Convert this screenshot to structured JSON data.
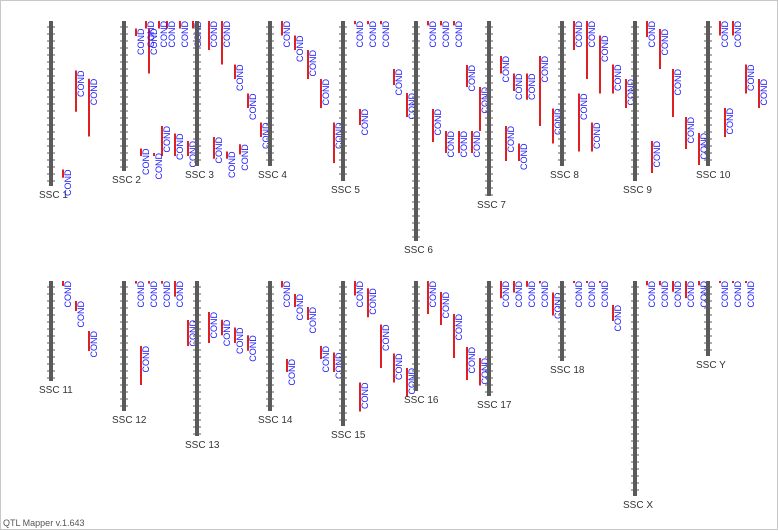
{
  "app": {
    "version_label": "QTL Mapper v.1.643"
  },
  "colors": {
    "chromosome": "#5a5a5a",
    "qtl_bar": "#e02020",
    "qtl_label": "#1a1aff",
    "chr_label": "#333333"
  },
  "trait_label": "COND",
  "chromosomes": [
    {
      "name": "SSC 1",
      "qtls": [
        [
          0.9,
          0.95
        ],
        [
          0.3,
          0.55
        ],
        [
          0.35,
          0.7
        ]
      ]
    },
    {
      "name": "SSC 2",
      "qtls": [
        [
          0.05,
          0.1
        ],
        [
          0.05,
          0.35
        ],
        [
          0.7,
          0.9
        ],
        [
          0.75,
          0.9
        ],
        [
          0.8,
          0.9
        ],
        [
          0.85,
          0.9
        ],
        [
          0.88,
          0.9
        ],
        [
          0.0,
          0.05
        ],
        [
          0.0,
          0.05
        ],
        [
          0.0,
          0.05
        ],
        [
          0.0,
          0.05
        ],
        [
          0.0,
          0.05
        ]
      ]
    },
    {
      "name": "SSC 3",
      "qtls": [
        [
          0.0,
          0.2
        ],
        [
          0.0,
          0.3
        ],
        [
          0.3,
          0.4
        ],
        [
          0.5,
          0.6
        ],
        [
          0.7,
          0.8
        ],
        [
          0.8,
          0.95
        ],
        [
          0.9,
          0.95
        ],
        [
          0.85,
          0.92
        ]
      ]
    },
    {
      "name": "SSC 4",
      "qtls": [
        [
          0.0,
          0.1
        ],
        [
          0.1,
          0.2
        ],
        [
          0.2,
          0.4
        ],
        [
          0.4,
          0.6
        ],
        [
          0.7,
          0.98
        ]
      ]
    },
    {
      "name": "SSC 5",
      "qtls": [
        [
          0.0,
          0.02
        ],
        [
          0.0,
          0.02
        ],
        [
          0.0,
          0.02
        ],
        [
          0.3,
          0.4
        ],
        [
          0.45,
          0.6
        ],
        [
          0.55,
          0.65
        ]
      ]
    },
    {
      "name": "SSC 6",
      "qtls": [
        [
          0.0,
          0.02
        ],
        [
          0.0,
          0.02
        ],
        [
          0.0,
          0.02
        ],
        [
          0.2,
          0.3
        ],
        [
          0.3,
          0.5
        ],
        [
          0.4,
          0.55
        ],
        [
          0.5,
          0.6
        ],
        [
          0.5,
          0.6
        ],
        [
          0.5,
          0.6
        ]
      ]
    },
    {
      "name": "SSC 7",
      "qtls": [
        [
          0.2,
          0.3
        ],
        [
          0.3,
          0.4
        ],
        [
          0.3,
          0.45
        ],
        [
          0.2,
          0.6
        ],
        [
          0.5,
          0.7
        ],
        [
          0.6,
          0.8
        ],
        [
          0.7,
          0.8
        ]
      ]
    },
    {
      "name": "SSC 8",
      "qtls": [
        [
          0.0,
          0.2
        ],
        [
          0.0,
          0.4
        ],
        [
          0.1,
          0.5
        ],
        [
          0.3,
          0.5
        ],
        [
          0.4,
          0.6
        ],
        [
          0.5,
          0.9
        ],
        [
          0.7,
          0.9
        ]
      ]
    },
    {
      "name": "SSC 9",
      "qtls": [
        [
          0.0,
          0.1
        ],
        [
          0.05,
          0.3
        ],
        [
          0.3,
          0.6
        ],
        [
          0.6,
          0.8
        ],
        [
          0.7,
          0.9
        ],
        [
          0.75,
          0.95
        ]
      ]
    },
    {
      "name": "SSC 10",
      "qtls": [
        [
          0.0,
          0.1
        ],
        [
          0.0,
          0.1
        ],
        [
          0.3,
          0.5
        ],
        [
          0.4,
          0.6
        ],
        [
          0.5,
          0.7
        ],
        [
          0.6,
          0.8
        ]
      ]
    },
    {
      "name": "SSC 11",
      "qtls": [
        [
          0.0,
          0.05
        ],
        [
          0.2,
          0.3
        ],
        [
          0.5,
          0.7
        ]
      ]
    },
    {
      "name": "SSC 12",
      "qtls": [
        [
          0.0,
          0.02
        ],
        [
          0.0,
          0.02
        ],
        [
          0.0,
          0.02
        ],
        [
          0.0,
          0.12
        ],
        [
          0.3,
          0.5
        ],
        [
          0.5,
          0.8
        ]
      ]
    },
    {
      "name": "SSC 13",
      "qtls": [
        [
          0.2,
          0.4
        ],
        [
          0.25,
          0.35
        ],
        [
          0.3,
          0.4
        ],
        [
          0.35,
          0.45
        ]
      ]
    },
    {
      "name": "SSC 14",
      "qtls": [
        [
          0.0,
          0.05
        ],
        [
          0.1,
          0.2
        ],
        [
          0.2,
          0.3
        ],
        [
          0.5,
          0.6
        ],
        [
          0.55,
          0.7
        ],
        [
          0.6,
          0.7
        ]
      ]
    },
    {
      "name": "SSC 15",
      "qtls": [
        [
          0.0,
          0.1
        ],
        [
          0.05,
          0.25
        ],
        [
          0.3,
          0.6
        ],
        [
          0.5,
          0.7
        ],
        [
          0.6,
          0.8
        ],
        [
          0.7,
          0.9
        ]
      ]
    },
    {
      "name": "SSC 16",
      "qtls": [
        [
          0.0,
          0.3
        ],
        [
          0.1,
          0.4
        ],
        [
          0.3,
          0.7
        ],
        [
          0.6,
          0.9
        ],
        [
          0.7,
          0.95
        ]
      ]
    },
    {
      "name": "SSC 17",
      "qtls": [
        [
          0.0,
          0.15
        ],
        [
          0.0,
          0.1
        ],
        [
          0.0,
          0.05
        ],
        [
          0.0,
          0.02
        ],
        [
          0.1,
          0.3
        ]
      ]
    },
    {
      "name": "SSC 18",
      "qtls": [
        [
          0.0,
          0.02
        ],
        [
          0.0,
          0.02
        ],
        [
          0.0,
          0.02
        ],
        [
          0.3,
          0.5
        ]
      ]
    },
    {
      "name": "SSC X",
      "qtls": [
        [
          0.0,
          0.02
        ],
        [
          0.0,
          0.02
        ],
        [
          0.0,
          0.05
        ],
        [
          0.0,
          0.08
        ],
        [
          0.0,
          0.02
        ]
      ]
    },
    {
      "name": "SSC Y",
      "qtls": [
        [
          0.0,
          0.02
        ],
        [
          0.0,
          0.02
        ],
        [
          0.0,
          0.02
        ]
      ]
    }
  ]
}
